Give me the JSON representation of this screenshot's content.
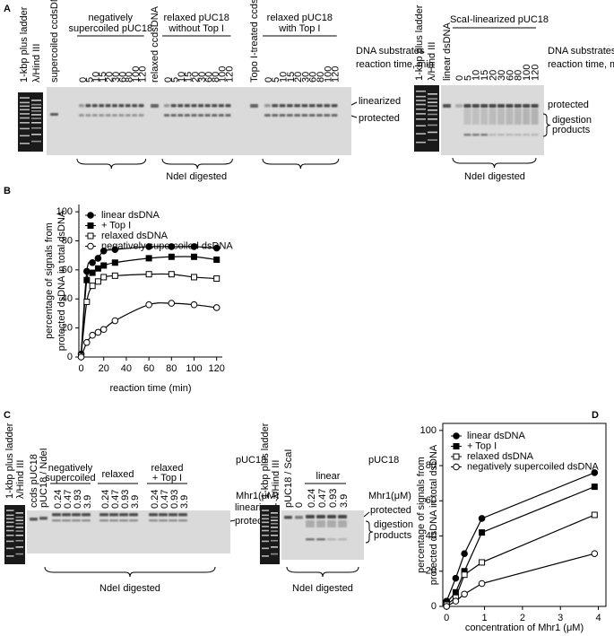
{
  "panel_labels": [
    "A",
    "B",
    "C",
    "D"
  ],
  "panel_a": {
    "left_gel": {
      "ladder_labels": [
        "1-kbp plus ladder",
        "λ/Hind III"
      ],
      "groups": [
        {
          "control": "supercoiled ccdsDNA",
          "header": [
            "negatively",
            "supercoiled pUC18"
          ]
        },
        {
          "control": "relaxed ccdsDNA",
          "header": [
            "relaxed pUC18",
            "without Top I"
          ]
        },
        {
          "control": "Topo I-treated ccdsDNA",
          "header": [
            "relaxed pUC18",
            "with Top I"
          ]
        }
      ],
      "times": [
        0,
        5,
        10,
        15,
        20,
        30,
        60,
        80,
        100,
        120
      ],
      "row_labels": [
        "DNA substrates",
        "reaction time, min"
      ],
      "band_labels": [
        "linearized",
        "protected"
      ],
      "footer": "NdeI digested"
    },
    "right_gel": {
      "ladder_labels": [
        "1-kbp plus ladder",
        "λ/Hind III"
      ],
      "control": "linear dsDNA",
      "header": "ScaI-linearized pUC18",
      "times": [
        0,
        5,
        10,
        15,
        20,
        30,
        60,
        80,
        100,
        120
      ],
      "row_labels": [
        "DNA substrates",
        "reaction time, min"
      ],
      "band_labels": [
        "protected",
        "digestion",
        "products"
      ],
      "footer": "NdeI digested"
    }
  },
  "panel_c": {
    "left_gel": {
      "ladder_labels": [
        "1-kbp plus ladder",
        "λ/Hind III"
      ],
      "controls": [
        "ccds pUC18",
        "pUC18 / NdeI"
      ],
      "groups": [
        {
          "header": [
            "negatively",
            "supercoiled"
          ]
        },
        {
          "header": [
            "relaxed"
          ]
        },
        {
          "header": [
            "relaxed",
            "+ Top I"
          ]
        }
      ],
      "concentrations": [
        0.24,
        0.47,
        0.93,
        3.9
      ],
      "row_labels": [
        "pUC18",
        "Mhr1(μM)"
      ],
      "band_labels": [
        "linearized",
        "protected"
      ],
      "footer": "NdeI digested"
    },
    "right_gel": {
      "ladder_labels": [
        "1-kbp plus ladder",
        "λ/Hind III"
      ],
      "controls": [
        "pUC18 / ScaI",
        0
      ],
      "header": "linear",
      "concentrations": [
        0.24,
        0.47,
        0.93,
        3.9
      ],
      "row_labels": [
        "pUC18",
        "Mhr1(μM)"
      ],
      "band_labels": [
        "protected",
        "digestion",
        "products"
      ],
      "footer": "NdeI digested"
    }
  },
  "chart_data": [
    {
      "type": "line",
      "xlabel": "reaction time (min)",
      "ylabel": [
        "percentage of signals from",
        "protected dsDNA in total  dsDNA"
      ],
      "x": [
        0,
        5,
        10,
        15,
        20,
        30,
        60,
        80,
        100,
        120
      ],
      "xlim": [
        -2,
        125
      ],
      "ylim": [
        0,
        105
      ],
      "xticks": [
        0,
        20,
        40,
        60,
        80,
        100,
        120
      ],
      "yticks": [
        0,
        20,
        40,
        60,
        80,
        100
      ],
      "smooth": true,
      "frame": "axes",
      "legend": "upper left",
      "series": [
        {
          "name": "linear dsDNA",
          "color": "#000000",
          "marker": "circle",
          "fill": "#000000",
          "values": [
            2,
            59,
            65,
            68,
            73,
            74,
            76,
            76,
            76,
            75
          ]
        },
        {
          "name": "+ Top I",
          "color": "#000000",
          "marker": "square",
          "fill": "#000000",
          "values": [
            1,
            53,
            58,
            61,
            63,
            65,
            68,
            69,
            69,
            67
          ]
        },
        {
          "name": "relaxed dsDNA",
          "color": "#000000",
          "marker": "square",
          "fill": "#ffffff",
          "values": [
            1,
            38,
            49,
            52,
            55,
            56,
            57,
            57,
            55,
            54
          ]
        },
        {
          "name": "negatively supercoiled dsDNA",
          "color": "#000000",
          "marker": "circle",
          "fill": "#ffffff",
          "values": [
            0,
            10,
            15,
            17,
            19,
            25,
            36,
            37,
            36,
            34
          ]
        }
      ]
    },
    {
      "type": "line",
      "xlabel": "concentration of Mhr1 (μM)",
      "ylabel": [
        "percentage of signals from",
        "protected dsDNA in total  dsDNA"
      ],
      "x": [
        0,
        0.24,
        0.47,
        0.93,
        3.9
      ],
      "xlim": [
        -0.1,
        4.2
      ],
      "ylim": [
        0,
        104
      ],
      "xticks": [
        0,
        1,
        2,
        3,
        4
      ],
      "yticks": [
        0,
        20,
        40,
        60,
        80,
        100
      ],
      "smooth": false,
      "frame": "box",
      "legend": "upper left",
      "series": [
        {
          "name": "linear dsDNA",
          "color": "#000000",
          "marker": "circle",
          "fill": "#000000",
          "values": [
            3,
            16,
            30,
            50,
            76
          ]
        },
        {
          "name": "+ Top I",
          "color": "#000000",
          "marker": "square",
          "fill": "#000000",
          "values": [
            2,
            8,
            20,
            42,
            68
          ]
        },
        {
          "name": "relaxed dsDNA",
          "color": "#000000",
          "marker": "square",
          "fill": "#ffffff",
          "values": [
            1,
            5,
            18,
            25,
            52
          ]
        },
        {
          "name": "negatively supercoiled dsDNA",
          "color": "#000000",
          "marker": "circle",
          "fill": "#ffffff",
          "values": [
            0,
            3,
            7,
            13,
            30
          ]
        }
      ]
    }
  ]
}
